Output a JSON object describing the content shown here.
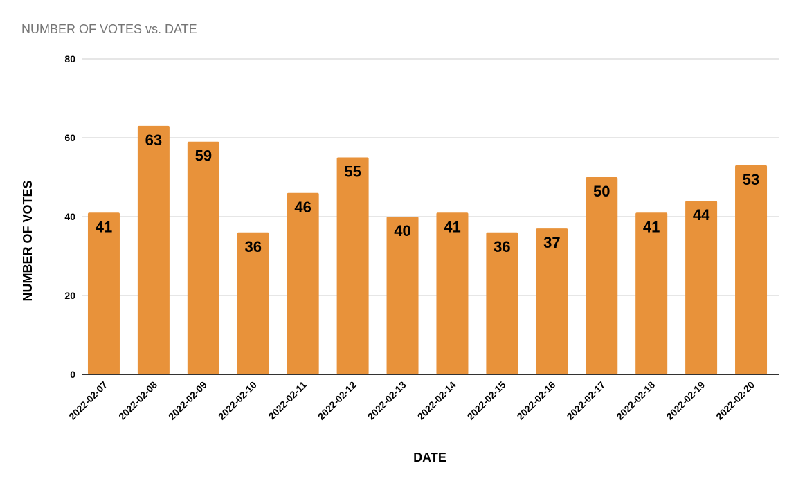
{
  "chart_data": {
    "type": "bar",
    "title": "NUMBER OF VOTES vs. DATE",
    "xlabel": "DATE",
    "ylabel": "NUMBER OF VOTES",
    "ylim": [
      0,
      80
    ],
    "yticks": [
      0,
      20,
      40,
      60,
      80
    ],
    "grid": true,
    "legend": "none",
    "bar_color": "#e8923a",
    "categories": [
      "2022-02-07",
      "2022-02-08",
      "2022-02-09",
      "2022-02-10",
      "2022-02-11",
      "2022-02-12",
      "2022-02-13",
      "2022-02-14",
      "2022-02-15",
      "2022-02-16",
      "2022-02-17",
      "2022-02-18",
      "2022-02-19",
      "2022-02-20"
    ],
    "values": [
      41,
      63,
      59,
      36,
      46,
      55,
      40,
      41,
      36,
      37,
      50,
      41,
      44,
      53
    ]
  }
}
